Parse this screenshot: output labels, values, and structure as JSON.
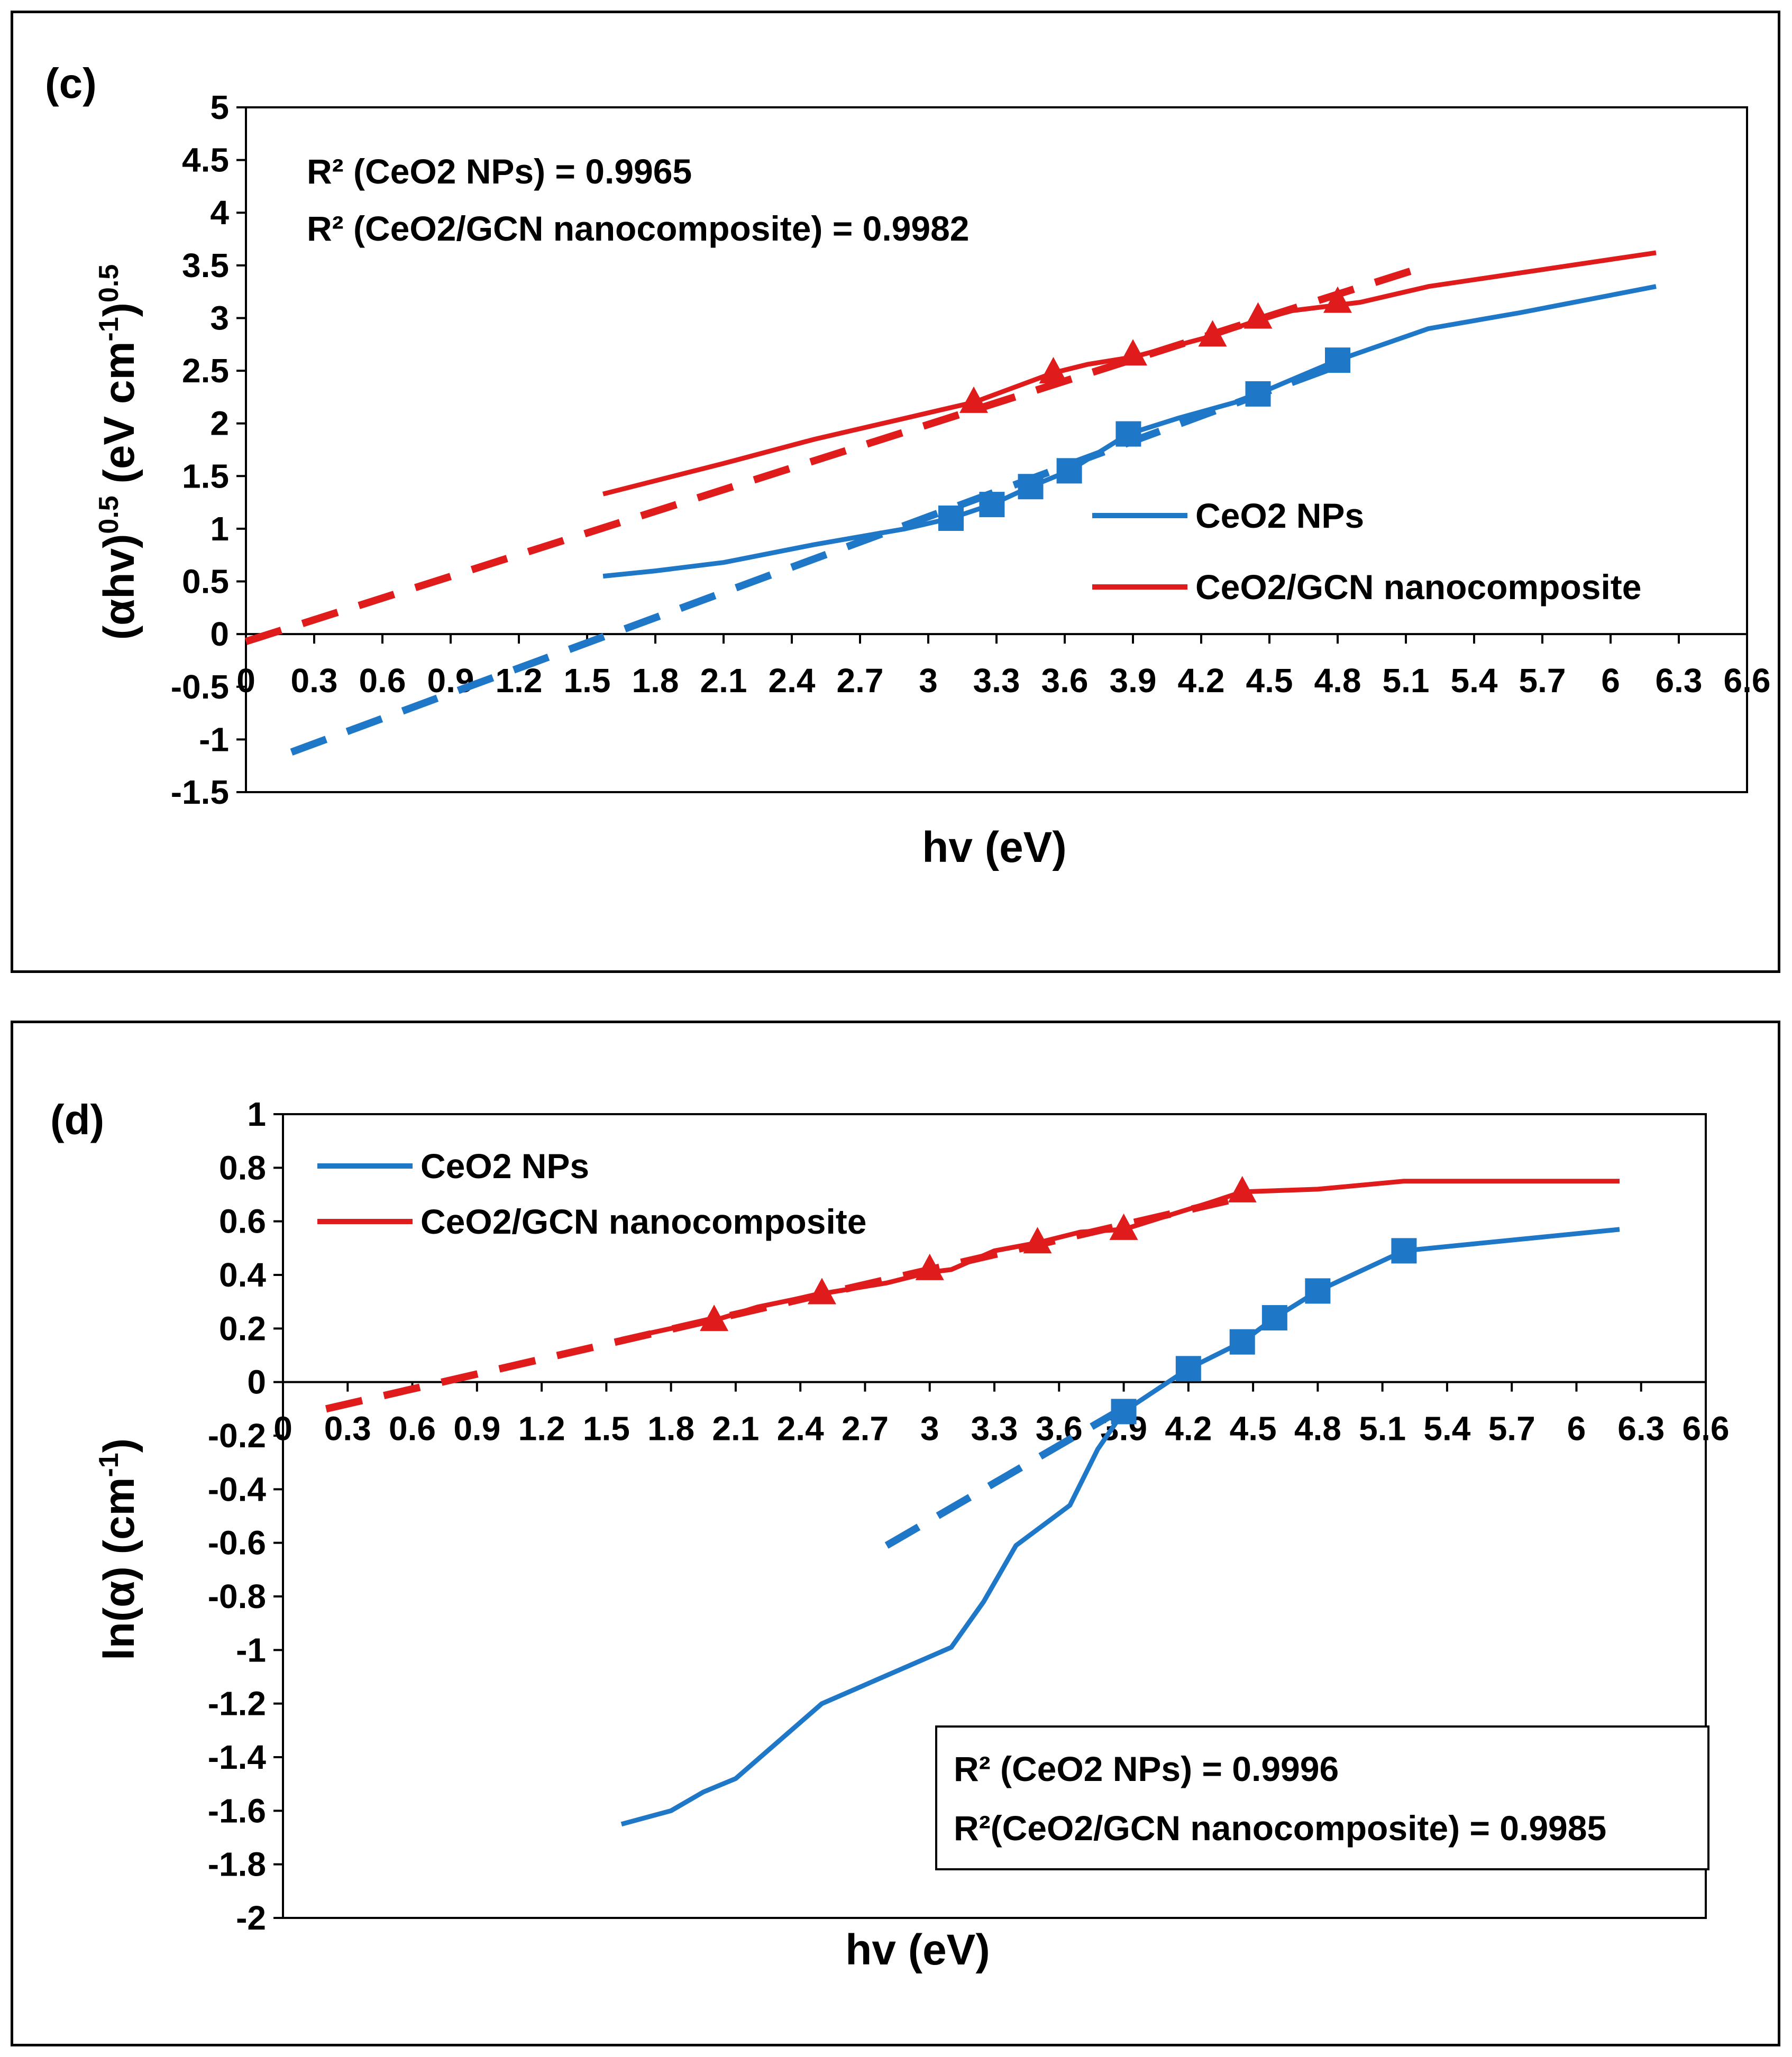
{
  "chart_data": [
    {
      "type": "line",
      "panel_label": "(c)",
      "xlabel": "hv (eV)",
      "ylabel_main": "(αhv)",
      "ylabel_sup1": "0.5",
      "ylabel_mid": " (eV cm",
      "ylabel_sup2": "-1",
      "ylabel_end": ")",
      "ylabel_sup3": "0.5",
      "xlim": [
        0,
        6.6
      ],
      "ylim": [
        -1.5,
        5
      ],
      "x_ticks": [
        "0",
        "0.3",
        "0.6",
        "0.9",
        "1.2",
        "1.5",
        "1.8",
        "2.1",
        "2.4",
        "2.7",
        "3",
        "3.3",
        "3.6",
        "3.9",
        "4.2",
        "4.5",
        "4.8",
        "5.1",
        "5.4",
        "5.7",
        "6",
        "6.3",
        "6.6"
      ],
      "y_ticks": [
        "5",
        "4.5",
        "4",
        "3.5",
        "3",
        "2.5",
        "2",
        "1.5",
        "1",
        "0.5",
        "0",
        "-0.5",
        "-1",
        "-1.5"
      ],
      "annotations": [
        "R² (CeO2 NPs) = 0.9965",
        "R² (CeO2/GCN nanocomposite) = 0.9982"
      ],
      "legend": [
        "CeO2 NPs",
        "CeO2/GCN nanocomposite"
      ],
      "series": [
        {
          "name": "CeO2 NPs",
          "color": "#1f77c8",
          "marker": "square",
          "x": [
            1.57,
            1.8,
            2.1,
            2.5,
            2.9,
            3.1,
            3.28,
            3.45,
            3.62,
            3.88,
            4.1,
            4.35,
            4.45,
            4.8,
            5.2,
            5.6,
            6.2
          ],
          "y": [
            0.55,
            0.6,
            0.68,
            0.85,
            1.0,
            1.1,
            1.23,
            1.4,
            1.55,
            1.9,
            2.05,
            2.2,
            2.28,
            2.6,
            2.9,
            3.05,
            3.3
          ],
          "marker_x": [
            3.1,
            3.28,
            3.45,
            3.62,
            3.88,
            4.45,
            4.8
          ],
          "marker_y": [
            1.1,
            1.23,
            1.4,
            1.55,
            1.9,
            2.28,
            2.6
          ],
          "fit": {
            "x": [
              0.2,
              4.8
            ],
            "y": [
              -1.12,
              2.55
            ]
          }
        },
        {
          "name": "CeO2/GCN nanocomposite",
          "color": "#e01b1b",
          "marker": "triangle",
          "x": [
            1.57,
            2.1,
            2.5,
            2.9,
            3.2,
            3.55,
            3.7,
            3.9,
            4.25,
            4.45,
            4.6,
            4.9,
            5.2,
            6.2
          ],
          "y": [
            1.33,
            1.62,
            1.85,
            2.05,
            2.2,
            2.48,
            2.56,
            2.63,
            2.83,
            2.98,
            3.07,
            3.15,
            3.3,
            3.62
          ],
          "marker_x": [
            3.2,
            3.55,
            3.9,
            4.25,
            4.45,
            4.8
          ],
          "marker_y": [
            2.2,
            2.48,
            2.65,
            2.83,
            3.0,
            3.15
          ],
          "fit": {
            "x": [
              0.0,
              5.2
            ],
            "y": [
              -0.07,
              3.5
            ]
          }
        }
      ]
    },
    {
      "type": "line",
      "panel_label": "(d)",
      "xlabel": "hv (eV)",
      "ylabel_main": "ln(α)  (cm",
      "ylabel_sup1": "-1",
      "ylabel_end": ")",
      "xlim": [
        0,
        6.6
      ],
      "ylim": [
        -2,
        1
      ],
      "x_ticks": [
        "0",
        "0.3",
        "0.6",
        "0.9",
        "1.2",
        "1.5",
        "1.8",
        "2.1",
        "2.4",
        "2.7",
        "3",
        "3.3",
        "3.6",
        "3.9",
        "4.2",
        "4.5",
        "4.8",
        "5.1",
        "5.4",
        "5.7",
        "6",
        "6.3",
        "6.6"
      ],
      "y_ticks": [
        "1",
        "0.8",
        "0.6",
        "0.4",
        "0.2",
        "0",
        "-0.2",
        "-0.4",
        "-0.6",
        "-0.8",
        "-1",
        "-1.2",
        "-1.4",
        "-1.6",
        "-1.8",
        "-2"
      ],
      "annotations": [
        "R² (CeO2 NPs) = 0.9996",
        "R²(CeO2/GCN nanocomposite)  = 0.9985"
      ],
      "legend": [
        "CeO2 NPs",
        "CeO2/GCN nanocomposite"
      ],
      "series": [
        {
          "name": "CeO2 NPs",
          "color": "#1f77c8",
          "marker": "square",
          "x": [
            1.57,
            1.8,
            1.95,
            2.1,
            2.3,
            2.5,
            2.7,
            2.9,
            3.1,
            3.25,
            3.4,
            3.65,
            3.78,
            3.9,
            4.2,
            4.45,
            4.6,
            4.8,
            5.2,
            6.2
          ],
          "y": [
            -1.65,
            -1.6,
            -1.53,
            -1.48,
            -1.34,
            -1.2,
            -1.13,
            -1.06,
            -0.99,
            -0.82,
            -0.61,
            -0.46,
            -0.25,
            -0.11,
            0.05,
            0.15,
            0.24,
            0.34,
            0.49,
            0.57
          ],
          "marker_x": [
            3.9,
            4.2,
            4.45,
            4.6,
            4.8,
            5.2
          ],
          "marker_y": [
            -0.11,
            0.05,
            0.15,
            0.24,
            0.34,
            0.49
          ],
          "fit": {
            "x": [
              2.8,
              3.85
            ],
            "y": [
              -0.61,
              -0.12
            ]
          }
        },
        {
          "name": "CeO2/GCN nanocomposite",
          "color": "#e01b1b",
          "marker": "triangle",
          "x": [
            1.57,
            1.8,
            2.0,
            2.2,
            2.5,
            2.8,
            3.0,
            3.1,
            3.3,
            3.5,
            3.7,
            3.9,
            4.1,
            4.3,
            4.45,
            4.8,
            5.2,
            6.2
          ],
          "y": [
            0.16,
            0.2,
            0.23,
            0.28,
            0.33,
            0.37,
            0.41,
            0.42,
            0.49,
            0.52,
            0.56,
            0.57,
            0.62,
            0.67,
            0.71,
            0.72,
            0.75,
            0.75
          ],
          "marker_x": [
            2.0,
            2.5,
            3.0,
            3.5,
            3.9,
            4.45
          ],
          "marker_y": [
            0.23,
            0.33,
            0.42,
            0.52,
            0.57,
            0.71
          ],
          "fit": {
            "x": [
              0.2,
              4.4
            ],
            "y": [
              -0.1,
              0.68
            ]
          }
        }
      ]
    }
  ]
}
